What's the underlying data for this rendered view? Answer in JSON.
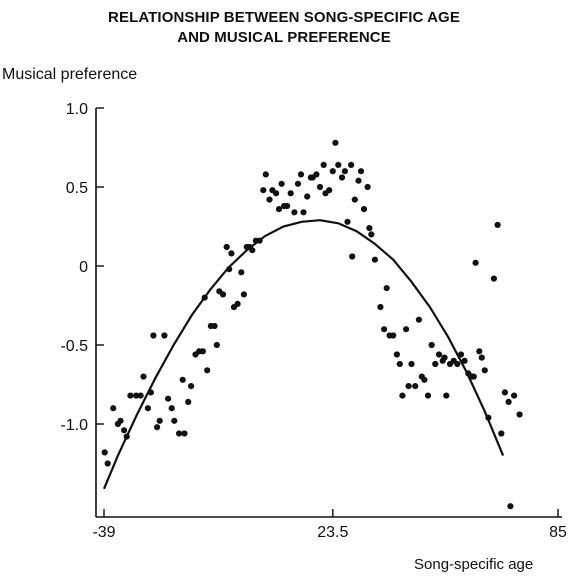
{
  "chart_data": {
    "type": "scatter",
    "title_lines": [
      "RELATIONSHIP BETWEEN SONG-SPECIFIC AGE",
      "AND MUSICAL PREFERENCE"
    ],
    "xlabel": "Song-specific age",
    "ylabel": "Musical preference",
    "xlim": [
      -39,
      85
    ],
    "ylim": [
      -1.55,
      1.0
    ],
    "x_ticks": [
      -39,
      23.5,
      85
    ],
    "y_ticks": [
      1.0,
      0.5,
      0,
      -0.5,
      -1.0
    ],
    "x_tick_labels": [
      "-39",
      "23.5",
      "85"
    ],
    "y_tick_labels": [
      "1.0",
      "0.5",
      "0",
      "-0.5",
      "-1.0"
    ],
    "grid": false,
    "legend": "none",
    "series": [
      {
        "type": "scatter",
        "points": [
          [
            -38.8,
            -1.18
          ],
          [
            -38,
            -1.25
          ],
          [
            -36.5,
            -0.9
          ],
          [
            -35.2,
            -1.0
          ],
          [
            -34.5,
            -0.98
          ],
          [
            -33.5,
            -1.04
          ],
          [
            -32.8,
            -1.08
          ],
          [
            -31.8,
            -0.82
          ],
          [
            -30.2,
            -0.82
          ],
          [
            -29,
            -0.82
          ],
          [
            -28.2,
            -0.7
          ],
          [
            -27,
            -0.9
          ],
          [
            -26.2,
            -0.8
          ],
          [
            -25.5,
            -0.44
          ],
          [
            -24.5,
            -1.02
          ],
          [
            -23.8,
            -0.98
          ],
          [
            -22.5,
            -0.44
          ],
          [
            -21.5,
            -0.84
          ],
          [
            -20.5,
            -0.9
          ],
          [
            -19.8,
            -0.98
          ],
          [
            -18.5,
            -1.06
          ],
          [
            -17.5,
            -0.72
          ],
          [
            -17,
            -1.06
          ],
          [
            -16,
            -0.86
          ],
          [
            -15.2,
            -0.76
          ],
          [
            -14,
            -0.56
          ],
          [
            -13,
            -0.54
          ],
          [
            -12,
            -0.54
          ],
          [
            -11.5,
            -0.2
          ],
          [
            -10.8,
            -0.66
          ],
          [
            -9.8,
            -0.38
          ],
          [
            -8.8,
            -0.38
          ],
          [
            -8.2,
            -0.5
          ],
          [
            -7.5,
            -0.16
          ],
          [
            -6.5,
            -0.18
          ],
          [
            -5.5,
            0.12
          ],
          [
            -4.8,
            -0.02
          ],
          [
            -4.2,
            0.08
          ],
          [
            -3.5,
            -0.26
          ],
          [
            -2.5,
            -0.24
          ],
          [
            -1.5,
            -0.04
          ],
          [
            -0.8,
            -0.18
          ],
          [
            0,
            0.12
          ],
          [
            0.8,
            0.12
          ],
          [
            1.5,
            0.1
          ],
          [
            2.5,
            0.16
          ],
          [
            3.5,
            0.16
          ],
          [
            4.5,
            0.48
          ],
          [
            5.2,
            0.58
          ],
          [
            6.2,
            0.42
          ],
          [
            7,
            0.48
          ],
          [
            8,
            0.46
          ],
          [
            8.8,
            0.36
          ],
          [
            9.5,
            0.52
          ],
          [
            10.2,
            0.38
          ],
          [
            11,
            0.38
          ],
          [
            12,
            0.46
          ],
          [
            13,
            0.34
          ],
          [
            14,
            0.52
          ],
          [
            14.8,
            0.58
          ],
          [
            15.5,
            0.34
          ],
          [
            16.5,
            0.44
          ],
          [
            17.5,
            0.56
          ],
          [
            18,
            0.56
          ],
          [
            19,
            0.58
          ],
          [
            20,
            0.5
          ],
          [
            21,
            0.64
          ],
          [
            21.5,
            0.46
          ],
          [
            22.5,
            0.48
          ],
          [
            23.5,
            0.6
          ],
          [
            24.2,
            0.78
          ],
          [
            25,
            0.64
          ],
          [
            26,
            0.56
          ],
          [
            26.8,
            0.6
          ],
          [
            27.5,
            0.28
          ],
          [
            28.5,
            0.64
          ],
          [
            29.5,
            0.42
          ],
          [
            30.5,
            0.54
          ],
          [
            31.2,
            0.6
          ],
          [
            32,
            0.36
          ],
          [
            33,
            0.5
          ],
          [
            33.5,
            0.24
          ],
          [
            34,
            0.2
          ],
          [
            35,
            0.04
          ],
          [
            28.8,
            0.06
          ],
          [
            36.5,
            -0.26
          ],
          [
            37.5,
            -0.4
          ],
          [
            38.2,
            -0.14
          ],
          [
            39,
            -0.44
          ],
          [
            40,
            -0.44
          ],
          [
            41,
            -0.56
          ],
          [
            41.8,
            -0.62
          ],
          [
            42.5,
            -0.82
          ],
          [
            43.5,
            -0.4
          ],
          [
            44.2,
            -0.76
          ],
          [
            45,
            -0.62
          ],
          [
            46,
            -0.76
          ],
          [
            47,
            -0.34
          ],
          [
            47.8,
            -0.7
          ],
          [
            48.5,
            -0.72
          ],
          [
            49.5,
            -0.82
          ],
          [
            50.5,
            -0.5
          ],
          [
            51.5,
            -0.62
          ],
          [
            52.5,
            -0.56
          ],
          [
            53.5,
            -0.6
          ],
          [
            54.5,
            -0.82
          ],
          [
            55.5,
            -0.62
          ],
          [
            56.5,
            -0.6
          ],
          [
            57.5,
            -0.62
          ],
          [
            58.5,
            -0.56
          ],
          [
            59.5,
            -0.6
          ],
          [
            60.5,
            -0.68
          ],
          [
            61.5,
            -0.7
          ],
          [
            62.5,
            0.02
          ],
          [
            63.5,
            -0.54
          ],
          [
            64.2,
            -0.58
          ],
          [
            65,
            -0.66
          ],
          [
            66,
            -0.96
          ],
          [
            67.5,
            -0.08
          ],
          [
            68.5,
            0.26
          ],
          [
            69.5,
            -1.06
          ],
          [
            70.5,
            -0.8
          ],
          [
            71.5,
            -0.86
          ],
          [
            72,
            -1.52
          ],
          [
            73,
            -0.82
          ],
          [
            74.5,
            -0.94
          ],
          [
            62,
            -0.7
          ],
          [
            54,
            -0.58
          ]
        ]
      },
      {
        "type": "line",
        "points": [
          [
            -39,
            -1.41
          ],
          [
            -35,
            -1.19
          ],
          [
            -30,
            -0.94
          ],
          [
            -25,
            -0.71
          ],
          [
            -20,
            -0.5
          ],
          [
            -15,
            -0.31
          ],
          [
            -10,
            -0.15
          ],
          [
            -5,
            -0.01
          ],
          [
            0,
            0.1
          ],
          [
            5,
            0.19
          ],
          [
            10,
            0.25
          ],
          [
            15,
            0.28
          ],
          [
            20,
            0.29
          ],
          [
            25,
            0.27
          ],
          [
            30,
            0.22
          ],
          [
            35,
            0.14
          ],
          [
            40,
            0.04
          ],
          [
            45,
            -0.1
          ],
          [
            50,
            -0.26
          ],
          [
            55,
            -0.45
          ],
          [
            60,
            -0.67
          ],
          [
            65,
            -0.92
          ],
          [
            70,
            -1.2
          ]
        ]
      }
    ]
  }
}
